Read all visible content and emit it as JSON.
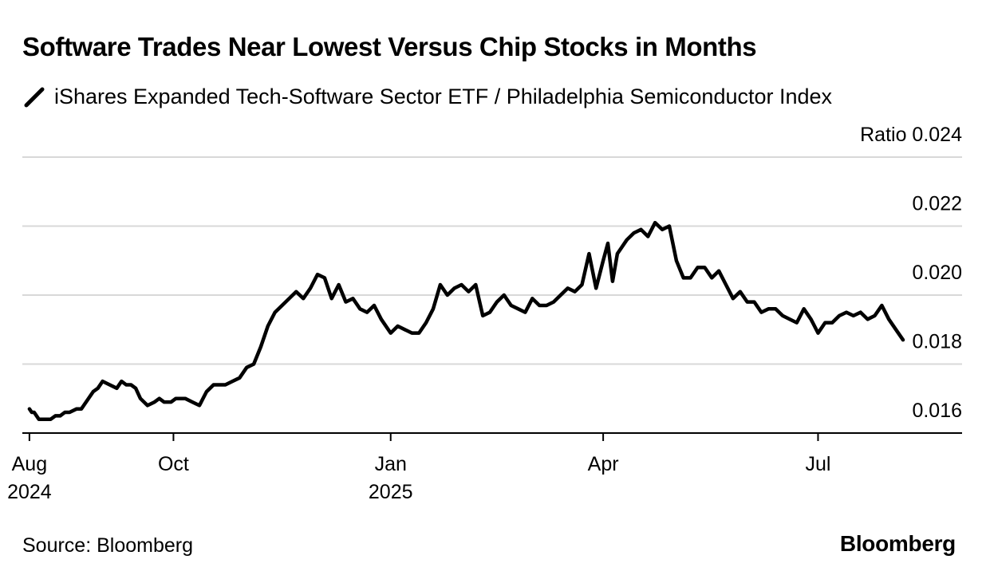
{
  "title": "Software Trades Near Lowest Versus Chip Stocks in Months",
  "legend": {
    "label": "iShares Expanded Tech-Software Sector ETF / Philadelphia Semiconductor Index"
  },
  "source": "Source: Bloomberg",
  "brand": "Bloomberg",
  "colors": {
    "line": "#000000",
    "grid": "#d8d8d8",
    "axis": "#000000"
  },
  "chart_data": {
    "type": "line",
    "title": "Software Trades Near Lowest Versus Chip Stocks in Months",
    "ylabel": "Ratio",
    "ylim": [
      0.016,
      0.024
    ],
    "yticks": [
      0.016,
      0.018,
      0.02,
      0.022,
      0.024
    ],
    "ytick_labels": [
      "0.016",
      "0.018",
      "0.020",
      "0.022",
      "Ratio 0.024"
    ],
    "xlim": [
      "2024-07-29",
      "2025-08-31"
    ],
    "xticks": [
      {
        "date": "2024-08-01",
        "label": "Aug",
        "sublabel": "2024"
      },
      {
        "date": "2024-10-01",
        "label": "Oct",
        "sublabel": ""
      },
      {
        "date": "2025-01-01",
        "label": "Jan",
        "sublabel": "2025"
      },
      {
        "date": "2025-04-01",
        "label": "Apr",
        "sublabel": ""
      },
      {
        "date": "2025-07-01",
        "label": "Jul",
        "sublabel": ""
      }
    ],
    "grid": true,
    "series": [
      {
        "name": "iShares Expanded Tech-Software Sector ETF / Philadelphia Semiconductor Index",
        "x": [
          "2024-08-01",
          "2024-08-02",
          "2024-08-03",
          "2024-08-05",
          "2024-08-07",
          "2024-08-10",
          "2024-08-12",
          "2024-08-14",
          "2024-08-16",
          "2024-08-18",
          "2024-08-21",
          "2024-08-23",
          "2024-08-25",
          "2024-08-28",
          "2024-08-30",
          "2024-09-01",
          "2024-09-04",
          "2024-09-07",
          "2024-09-09",
          "2024-09-11",
          "2024-09-13",
          "2024-09-15",
          "2024-09-17",
          "2024-09-20",
          "2024-09-23",
          "2024-09-25",
          "2024-09-27",
          "2024-09-30",
          "2024-10-02",
          "2024-10-04",
          "2024-10-06",
          "2024-10-09",
          "2024-10-12",
          "2024-10-15",
          "2024-10-18",
          "2024-10-20",
          "2024-10-23",
          "2024-10-26",
          "2024-10-29",
          "2024-11-01",
          "2024-11-04",
          "2024-11-07",
          "2024-11-10",
          "2024-11-13",
          "2024-11-16",
          "2024-11-19",
          "2024-11-22",
          "2024-11-25",
          "2024-11-28",
          "2024-12-01",
          "2024-12-04",
          "2024-12-07",
          "2024-12-10",
          "2024-12-13",
          "2024-12-16",
          "2024-12-19",
          "2024-12-22",
          "2024-12-25",
          "2024-12-28",
          "2025-01-01",
          "2025-01-04",
          "2025-01-07",
          "2025-01-10",
          "2025-01-13",
          "2025-01-16",
          "2025-01-19",
          "2025-01-22",
          "2025-01-25",
          "2025-01-28",
          "2025-01-31",
          "2025-02-03",
          "2025-02-06",
          "2025-02-09",
          "2025-02-12",
          "2025-02-15",
          "2025-02-18",
          "2025-02-21",
          "2025-02-24",
          "2025-02-27",
          "2025-03-02",
          "2025-03-05",
          "2025-03-08",
          "2025-03-11",
          "2025-03-14",
          "2025-03-17",
          "2025-03-20",
          "2025-03-23",
          "2025-03-26",
          "2025-03-29",
          "2025-04-01",
          "2025-04-03",
          "2025-04-05",
          "2025-04-07",
          "2025-04-09",
          "2025-04-11",
          "2025-04-14",
          "2025-04-17",
          "2025-04-20",
          "2025-04-23",
          "2025-04-26",
          "2025-04-29",
          "2025-05-02",
          "2025-05-05",
          "2025-05-08",
          "2025-05-11",
          "2025-05-14",
          "2025-05-17",
          "2025-05-20",
          "2025-05-23",
          "2025-05-26",
          "2025-05-29",
          "2025-06-01",
          "2025-06-04",
          "2025-06-07",
          "2025-06-10",
          "2025-06-13",
          "2025-06-16",
          "2025-06-19",
          "2025-06-22",
          "2025-06-25",
          "2025-06-28",
          "2025-07-01",
          "2025-07-04",
          "2025-07-07",
          "2025-07-10",
          "2025-07-13",
          "2025-07-16",
          "2025-07-19",
          "2025-07-22",
          "2025-07-25",
          "2025-07-28",
          "2025-07-31",
          "2025-08-03",
          "2025-08-06"
        ],
        "y": [
          0.0167,
          0.0166,
          0.0166,
          0.0164,
          0.0164,
          0.0164,
          0.0165,
          0.0165,
          0.0166,
          0.0166,
          0.0167,
          0.0167,
          0.0169,
          0.0172,
          0.0173,
          0.0175,
          0.0174,
          0.0173,
          0.0175,
          0.0174,
          0.0174,
          0.0173,
          0.017,
          0.0168,
          0.0169,
          0.017,
          0.0169,
          0.0169,
          0.017,
          0.017,
          0.017,
          0.0169,
          0.0168,
          0.0172,
          0.0174,
          0.0174,
          0.0174,
          0.0175,
          0.0176,
          0.0179,
          0.018,
          0.0185,
          0.0191,
          0.0195,
          0.0197,
          0.0199,
          0.0201,
          0.0199,
          0.0202,
          0.0206,
          0.0205,
          0.0199,
          0.0203,
          0.0198,
          0.0199,
          0.0196,
          0.0195,
          0.0197,
          0.0193,
          0.0189,
          0.0191,
          0.019,
          0.0189,
          0.0189,
          0.0192,
          0.0196,
          0.0203,
          0.02,
          0.0202,
          0.0203,
          0.0201,
          0.0203,
          0.0194,
          0.0195,
          0.0198,
          0.02,
          0.0197,
          0.0196,
          0.0195,
          0.0199,
          0.0197,
          0.0197,
          0.0198,
          0.02,
          0.0202,
          0.0201,
          0.0203,
          0.0212,
          0.0202,
          0.021,
          0.0215,
          0.0204,
          0.0212,
          0.0214,
          0.0216,
          0.0218,
          0.0219,
          0.0217,
          0.0221,
          0.0219,
          0.022,
          0.021,
          0.0205,
          0.0205,
          0.0208,
          0.0208,
          0.0205,
          0.0207,
          0.0203,
          0.0199,
          0.0201,
          0.0198,
          0.0198,
          0.0195,
          0.0196,
          0.0196,
          0.0194,
          0.0193,
          0.0192,
          0.0196,
          0.0193,
          0.0189,
          0.0192,
          0.0192,
          0.0194,
          0.0195,
          0.0194,
          0.0195,
          0.0193,
          0.0194,
          0.0197,
          0.0193,
          0.019,
          0.0187
        ]
      }
    ]
  }
}
